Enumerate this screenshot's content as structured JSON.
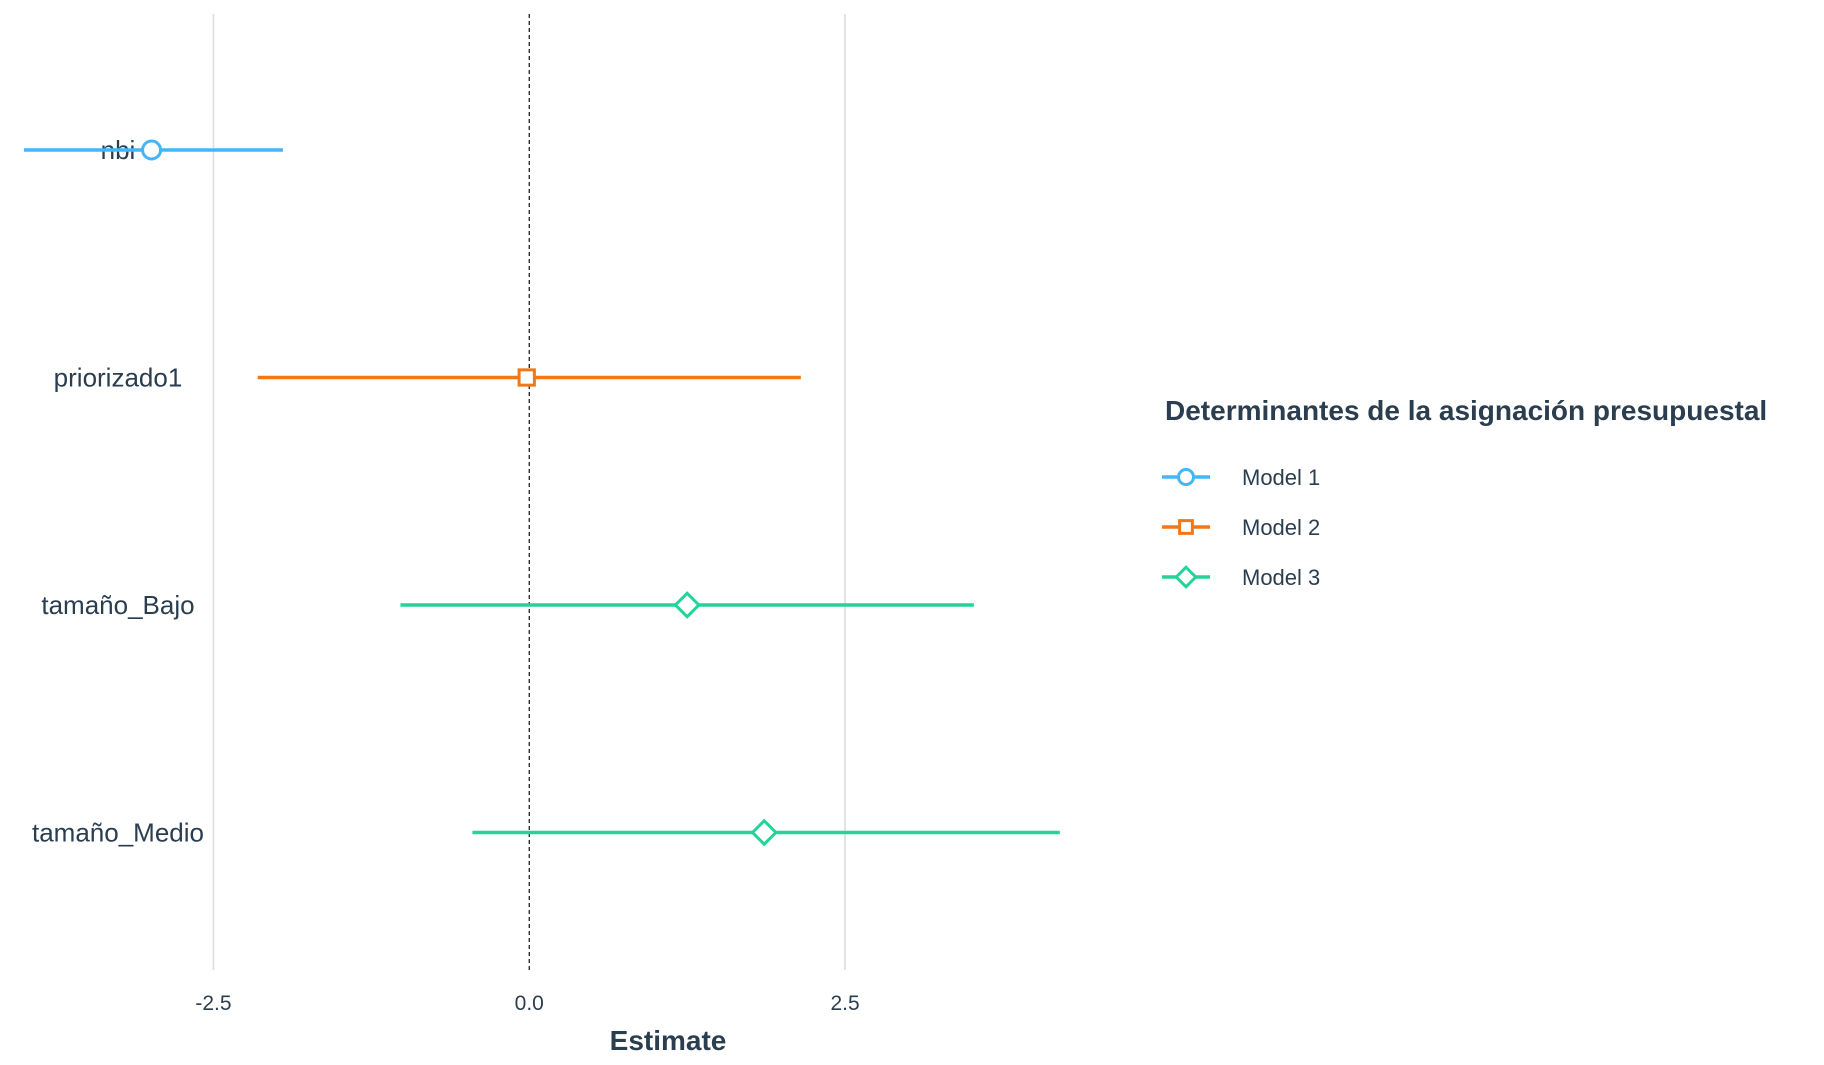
{
  "chart_data": {
    "type": "coefficient-plot",
    "title": "",
    "xlabel": "Estimate",
    "ylabel": "",
    "xlim": [
      -4.19,
      4.55
    ],
    "xticks": [
      -2.5,
      0.0,
      2.5
    ],
    "xtick_labels": [
      "-2.5",
      "0.0",
      "2.5"
    ],
    "reference_line": 0,
    "grid": "vertical-major",
    "categories": [
      "nbi",
      "priorizado1",
      "tamaño_Bajo",
      "tamaño_Medio"
    ],
    "legend": {
      "title": "Determinantes de la asignación presupuestal",
      "placement": "right"
    },
    "series": [
      {
        "name": "Model 1",
        "color": "#45b6f5",
        "marker": "circle",
        "points": [
          {
            "term": "nbi",
            "estimate": -2.99,
            "conf_low": -4.0,
            "conf_high": -1.95
          }
        ]
      },
      {
        "name": "Model 2",
        "color": "#f07817",
        "marker": "square",
        "points": [
          {
            "term": "priorizado1",
            "estimate": -0.02,
            "conf_low": -2.15,
            "conf_high": 2.15
          }
        ]
      },
      {
        "name": "Model 3",
        "color": "#22d497",
        "marker": "diamond",
        "points": [
          {
            "term": "tamaño_Bajo",
            "estimate": 1.25,
            "conf_low": -1.02,
            "conf_high": 3.52
          },
          {
            "term": "tamaño_Medio",
            "estimate": 1.86,
            "conf_low": -0.45,
            "conf_high": 4.2
          }
        ]
      }
    ]
  }
}
